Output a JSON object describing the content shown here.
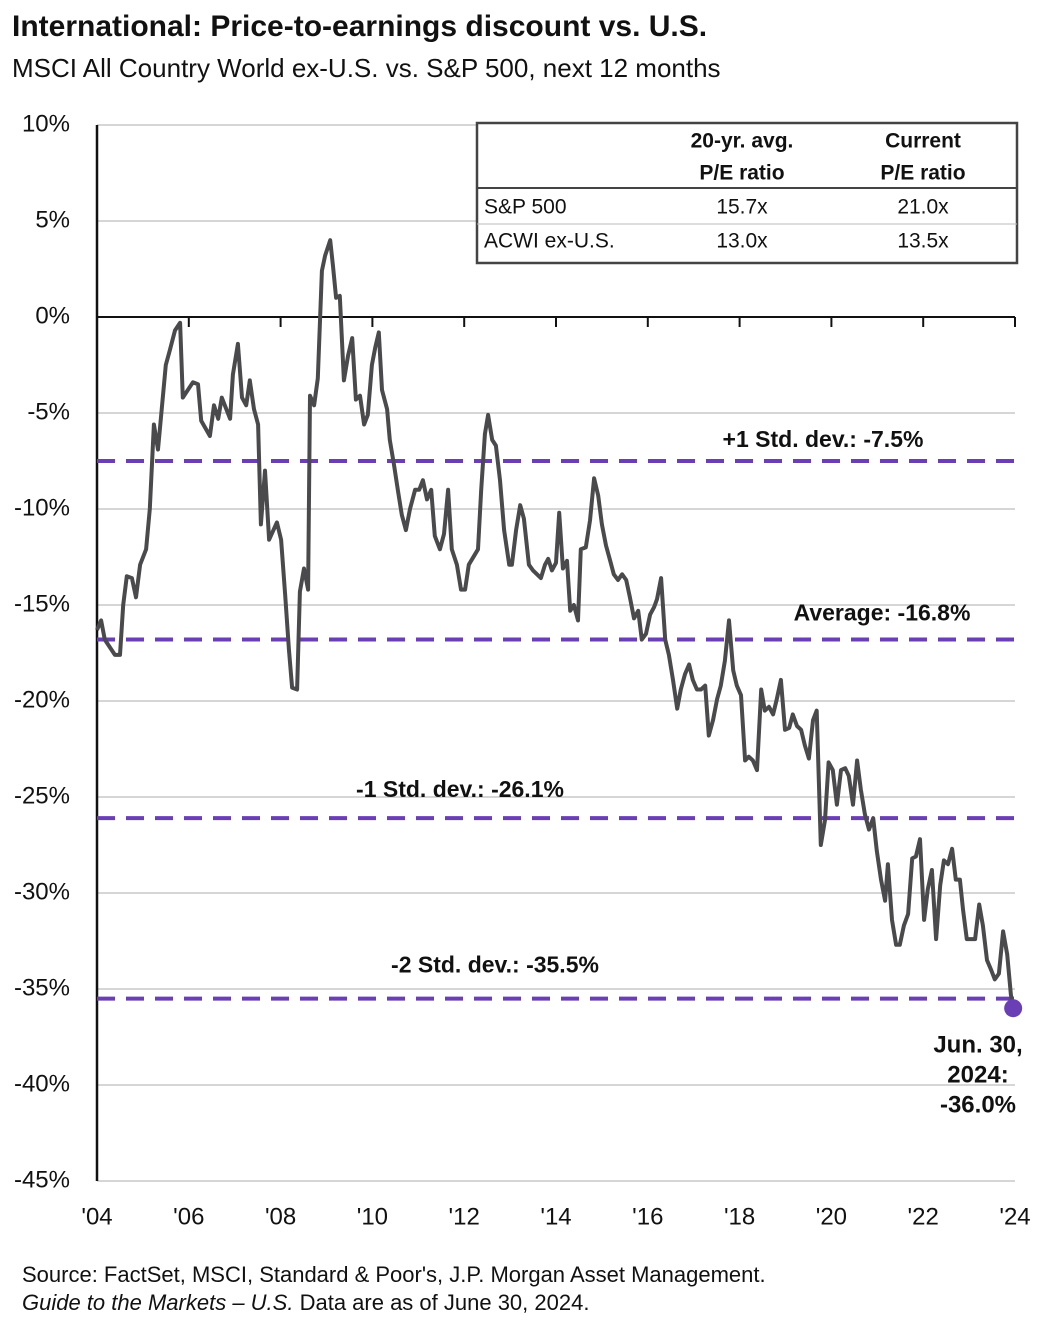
{
  "chart_data": {
    "type": "line",
    "title": "International: Price-to-earnings discount vs. U.S.",
    "subtitle": "MSCI All Country World ex-U.S. vs. S&P 500, next 12 months",
    "xlim": [
      2004,
      2024
    ],
    "xticks": [
      {
        "value": 2004,
        "label": "'04"
      },
      {
        "value": 2006,
        "label": "'06"
      },
      {
        "value": 2008,
        "label": "'08"
      },
      {
        "value": 2010,
        "label": "'10"
      },
      {
        "value": 2012,
        "label": "'12"
      },
      {
        "value": 2014,
        "label": "'14"
      },
      {
        "value": 2016,
        "label": "'16"
      },
      {
        "value": 2018,
        "label": "'18"
      },
      {
        "value": 2020,
        "label": "'20"
      },
      {
        "value": 2022,
        "label": "'22"
      },
      {
        "value": 2024,
        "label": "'24"
      }
    ],
    "ylim": [
      -45,
      10
    ],
    "yticks": [
      {
        "value": 10,
        "label": "10%"
      },
      {
        "value": 5,
        "label": "5%"
      },
      {
        "value": 0,
        "label": "0%"
      },
      {
        "value": -5,
        "label": "-5%"
      },
      {
        "value": -10,
        "label": "-10%"
      },
      {
        "value": -15,
        "label": "-15%"
      },
      {
        "value": -20,
        "label": "-20%"
      },
      {
        "value": -25,
        "label": "-25%"
      },
      {
        "value": -30,
        "label": "-30%"
      },
      {
        "value": -35,
        "label": "-35%"
      },
      {
        "value": -40,
        "label": "-40%"
      },
      {
        "value": -45,
        "label": "-45%"
      }
    ],
    "grid": true,
    "x": [
      2004.0,
      2004.09,
      2004.17,
      2004.39,
      2004.5,
      2004.57,
      2004.65,
      2004.76,
      2004.85,
      2004.94,
      2005.07,
      2005.15,
      2005.24,
      2005.33,
      2005.5,
      2005.59,
      2005.7,
      2005.81,
      2005.87,
      2006.09,
      2006.2,
      2006.27,
      2006.46,
      2006.55,
      2006.64,
      2006.72,
      2006.9,
      2006.96,
      2007.07,
      2007.16,
      2007.25,
      2007.33,
      2007.42,
      2007.51,
      2007.57,
      2007.66,
      2007.75,
      2007.92,
      2008.01,
      2008.1,
      2008.18,
      2008.25,
      2008.36,
      2008.42,
      2008.51,
      2008.6,
      2008.64,
      2008.73,
      2008.81,
      2008.9,
      2008.97,
      2009.08,
      2009.14,
      2009.21,
      2009.29,
      2009.38,
      2009.47,
      2009.56,
      2009.64,
      2009.73,
      2009.82,
      2009.9,
      2009.99,
      2010.06,
      2010.14,
      2010.21,
      2010.32,
      2010.38,
      2010.47,
      2010.56,
      2010.64,
      2010.73,
      2010.82,
      2010.93,
      2011.02,
      2011.1,
      2011.19,
      2011.28,
      2011.36,
      2011.47,
      2011.56,
      2011.65,
      2011.73,
      2011.84,
      2011.93,
      2012.02,
      2012.1,
      2012.3,
      2012.37,
      2012.45,
      2012.52,
      2012.61,
      2012.69,
      2012.78,
      2012.87,
      2012.98,
      2013.04,
      2013.13,
      2013.22,
      2013.3,
      2013.41,
      2013.5,
      2013.67,
      2013.76,
      2013.83,
      2013.91,
      2014.0,
      2014.07,
      2014.15,
      2014.24,
      2014.31,
      2014.39,
      2014.48,
      2014.54,
      2014.65,
      2014.74,
      2014.83,
      2014.92,
      2015.0,
      2015.09,
      2015.18,
      2015.26,
      2015.35,
      2015.44,
      2015.53,
      2015.61,
      2015.7,
      2015.79,
      2015.87,
      2015.96,
      2016.05,
      2016.14,
      2016.2,
      2016.29,
      2016.38,
      2016.46,
      2016.55,
      2016.64,
      2016.72,
      2016.81,
      2016.9,
      2016.98,
      2017.07,
      2017.16,
      2017.25,
      2017.33,
      2017.42,
      2017.51,
      2017.59,
      2017.68,
      2017.77,
      2017.86,
      2017.94,
      2018.03,
      2018.12,
      2018.2,
      2018.29,
      2018.38,
      2018.47,
      2018.55,
      2018.64,
      2018.73,
      2018.81,
      2018.9,
      2018.99,
      2019.08,
      2019.16,
      2019.25,
      2019.34,
      2019.42,
      2019.51,
      2019.6,
      2019.68,
      2019.77,
      2019.86,
      2019.94,
      2020.03,
      2020.12,
      2020.21,
      2020.3,
      2020.38,
      2020.47,
      2020.56,
      2020.64,
      2020.73,
      2020.82,
      2020.91,
      2020.99,
      2021.08,
      2021.17,
      2021.23,
      2021.32,
      2021.41,
      2021.49,
      2021.58,
      2021.67,
      2021.76,
      2021.84,
      2021.93,
      2022.02,
      2022.1,
      2022.19,
      2022.28,
      2022.37,
      2022.45,
      2022.54,
      2022.63,
      2022.71,
      2022.8,
      2022.87,
      2022.95,
      2023.13,
      2023.22,
      2023.3,
      2023.39,
      2023.48,
      2023.56,
      2023.65,
      2023.74,
      2023.83,
      2023.91,
      2023.96
    ],
    "series": [
      {
        "name": "P/E discount",
        "color": "#4a4a4c",
        "values": [
          -16.3,
          -15.8,
          -16.8,
          -17.6,
          -17.6,
          -15.0,
          -13.5,
          -13.6,
          -14.6,
          -12.9,
          -12.1,
          -10.0,
          -5.6,
          -6.9,
          -2.5,
          -1.7,
          -0.7,
          -0.3,
          -4.2,
          -3.4,
          -3.5,
          -5.4,
          -6.2,
          -4.6,
          -5.3,
          -4.2,
          -5.3,
          -3.0,
          -1.4,
          -4.2,
          -4.6,
          -3.3,
          -4.8,
          -5.6,
          -10.8,
          -8.0,
          -11.6,
          -10.7,
          -11.6,
          -14.5,
          -17.3,
          -19.3,
          -19.4,
          -14.3,
          -13.1,
          -14.2,
          -4.1,
          -4.6,
          -3.2,
          2.4,
          3.2,
          4.0,
          2.7,
          1.0,
          1.1,
          -3.3,
          -2.0,
          -1.1,
          -4.3,
          -4.1,
          -5.6,
          -5.1,
          -2.5,
          -1.6,
          -0.8,
          -3.8,
          -4.8,
          -6.4,
          -7.7,
          -9.1,
          -10.3,
          -11.1,
          -10.0,
          -9.0,
          -9.0,
          -8.5,
          -9.5,
          -9.0,
          -11.4,
          -12.1,
          -11.3,
          -9.0,
          -12.1,
          -12.9,
          -14.2,
          -14.2,
          -12.9,
          -12.1,
          -9.0,
          -6.1,
          -5.1,
          -6.4,
          -6.7,
          -8.5,
          -11.1,
          -12.9,
          -12.9,
          -11.1,
          -9.8,
          -10.5,
          -12.9,
          -13.2,
          -13.6,
          -12.9,
          -12.6,
          -13.2,
          -12.8,
          -10.2,
          -13.1,
          -12.7,
          -15.3,
          -15.0,
          -15.8,
          -12.1,
          -12.0,
          -10.6,
          -8.4,
          -9.3,
          -10.8,
          -11.9,
          -12.7,
          -13.4,
          -13.7,
          -13.4,
          -13.7,
          -14.6,
          -15.7,
          -15.3,
          -16.8,
          -16.5,
          -15.5,
          -15.1,
          -14.7,
          -13.6,
          -16.8,
          -17.6,
          -18.9,
          -20.4,
          -19.4,
          -18.6,
          -18.1,
          -18.9,
          -19.4,
          -19.4,
          -19.2,
          -21.8,
          -21.0,
          -19.9,
          -19.2,
          -17.9,
          -15.8,
          -18.4,
          -19.2,
          -19.7,
          -23.1,
          -22.9,
          -23.1,
          -23.6,
          -19.4,
          -20.5,
          -20.3,
          -20.7,
          -19.9,
          -18.9,
          -21.5,
          -21.4,
          -20.7,
          -21.3,
          -21.5,
          -22.3,
          -23.0,
          -21.0,
          -20.5,
          -27.5,
          -26.2,
          -23.2,
          -23.6,
          -25.4,
          -23.6,
          -23.5,
          -23.9,
          -25.4,
          -23.1,
          -24.6,
          -25.9,
          -26.7,
          -26.1,
          -27.8,
          -29.3,
          -30.4,
          -28.5,
          -31.4,
          -32.7,
          -32.7,
          -31.7,
          -31.1,
          -28.2,
          -28.1,
          -27.2,
          -31.4,
          -29.8,
          -28.8,
          -32.4,
          -29.6,
          -28.3,
          -28.5,
          -27.7,
          -29.3,
          -29.3,
          -30.9,
          -32.4,
          -32.4,
          -30.6,
          -31.7,
          -33.5,
          -34.0,
          -34.5,
          -34.2,
          -32.0,
          -33.2,
          -35.3,
          -36.0
        ]
      }
    ],
    "reference_lines": [
      {
        "value": -7.5,
        "label": "+1 Std. dev.: -7.5%"
      },
      {
        "value": -16.8,
        "label": "Average: -16.8%"
      },
      {
        "value": -26.1,
        "label": "-1 Std. dev.: -26.1%"
      },
      {
        "value": -35.5,
        "label": "-2 Std. dev.: -35.5%"
      }
    ],
    "reference_color": "#6a3fb5",
    "annotation": [
      "Jun. 30,",
      "2024:",
      "-36.0%"
    ],
    "table": {
      "header": [
        [
          "20-yr. avg.",
          "P/E ratio"
        ],
        [
          "Current",
          "P/E ratio"
        ]
      ],
      "rows": [
        [
          "S&P 500",
          "15.7x",
          "21.0x"
        ],
        [
          "ACWI ex-U.S.",
          "13.0x",
          "13.5x"
        ]
      ]
    },
    "source": "Source: FactSet, MSCI, Standard & Poor's, J.P. Morgan Asset Management.",
    "note_italic": "Guide to the Markets – U.S.",
    "note": " Data are as of June 30, 2024."
  }
}
